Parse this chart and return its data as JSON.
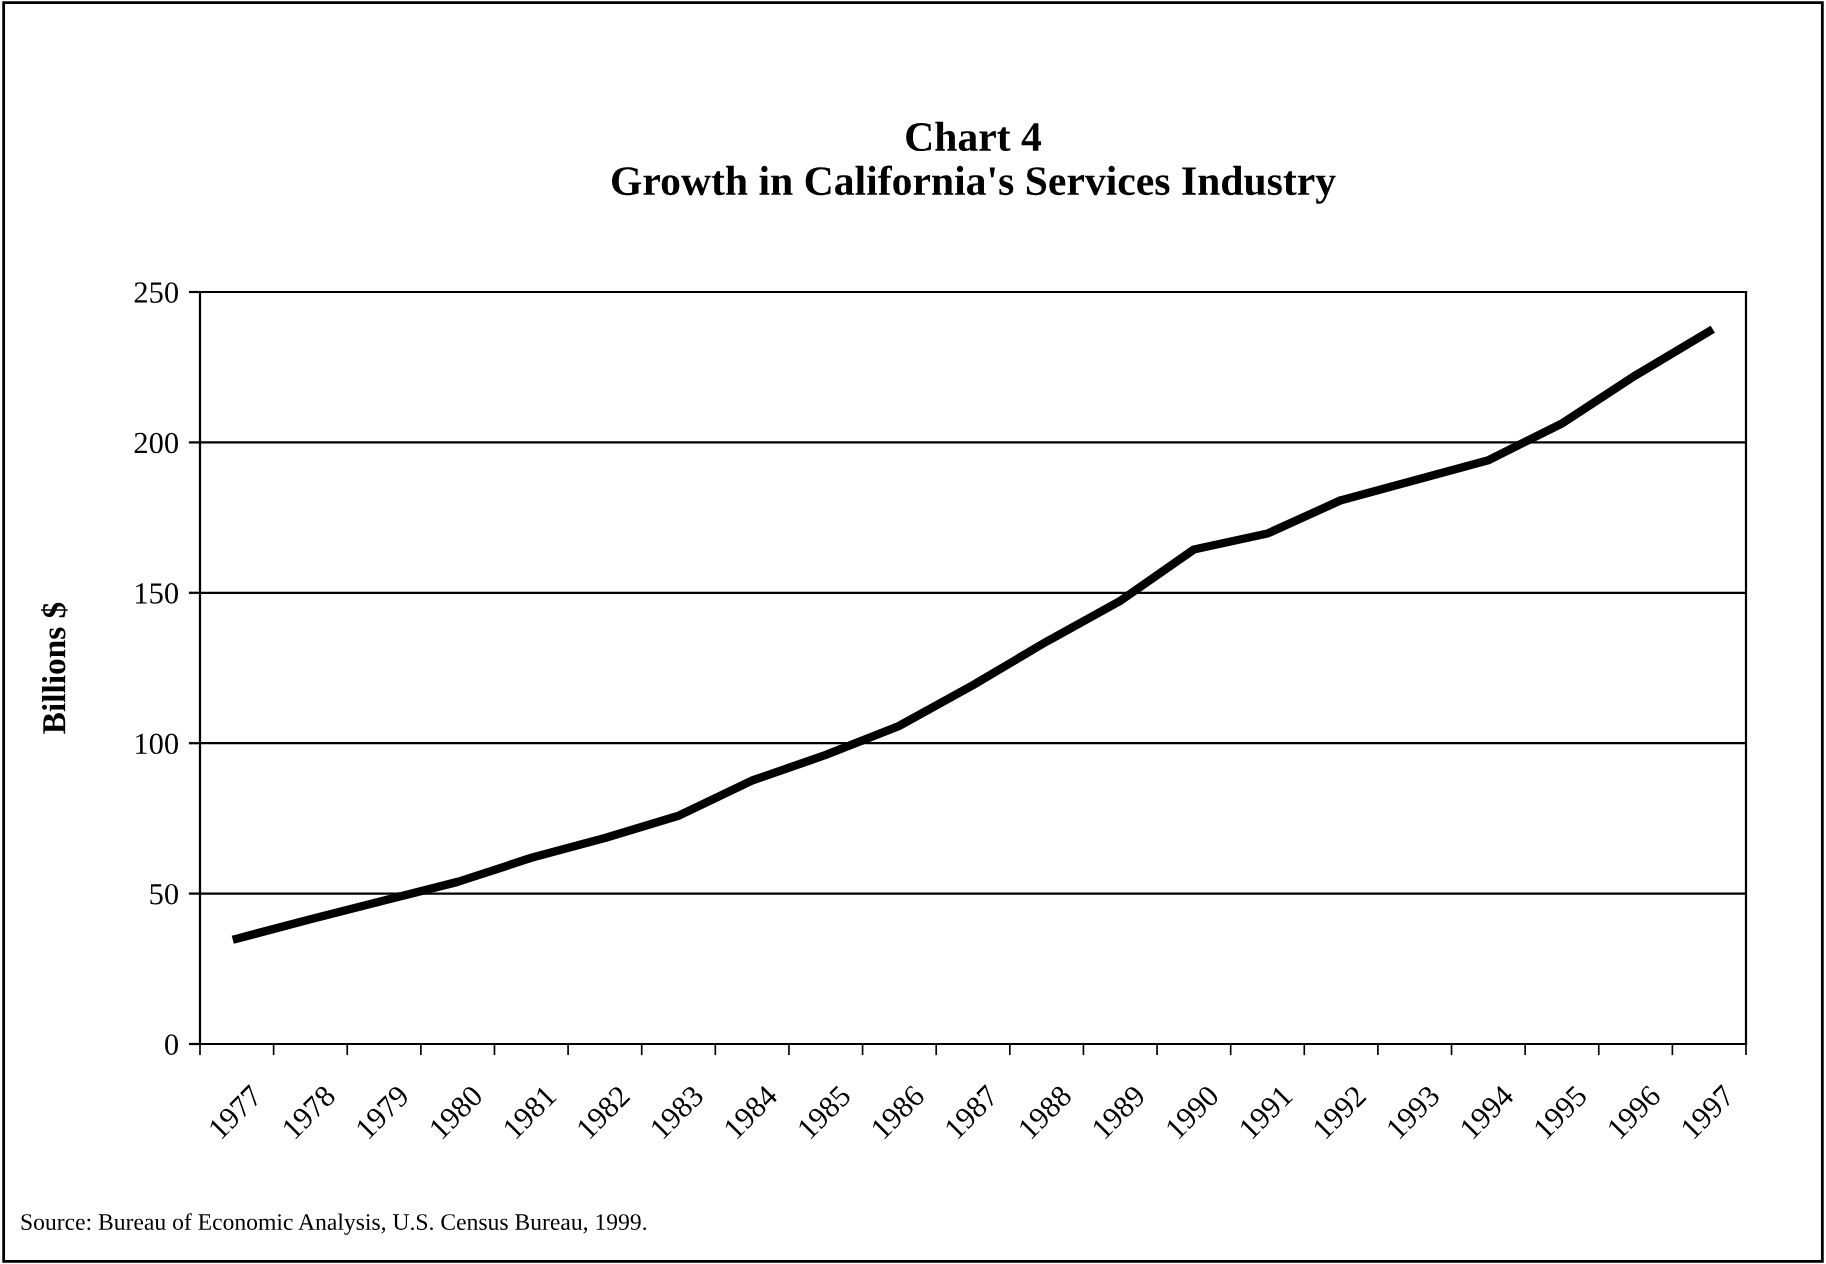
{
  "chart_data": {
    "type": "line",
    "title": "Chart 4\nGrowth in California's Services Industry",
    "ylabel": "Billions $",
    "categories": [
      "1977",
      "1978",
      "1979",
      "1980",
      "1981",
      "1982",
      "1983",
      "1984",
      "1985",
      "1986",
      "1987",
      "1988",
      "1989",
      "1990",
      "1991",
      "1992",
      "1993",
      "1994",
      "1995",
      "1996",
      "1997"
    ],
    "series": [
      {
        "color": "#000000",
        "values": [
          35,
          41.5,
          47.7,
          53.9,
          61.9,
          68.5,
          75.9,
          87.6,
          96.1,
          105.8,
          119.3,
          133.8,
          147.3,
          164.4,
          169.7,
          180.8,
          187.4,
          194.1,
          206.3,
          222.3,
          236.9
        ]
      }
    ],
    "ylim": [
      0,
      250
    ],
    "yticks": [
      0,
      50,
      100,
      150,
      200,
      250
    ],
    "grid": "y",
    "marker": "none",
    "line_style": "solid",
    "annotations": [
      "Source: Bureau of Economic Analysis, U.S. Census Bureau, 1999."
    ]
  }
}
